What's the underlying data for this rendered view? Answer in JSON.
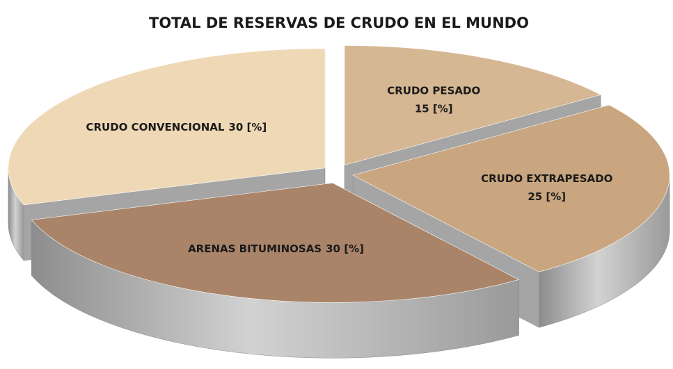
{
  "chart_data": {
    "type": "pie3d",
    "title": "TOTAL DE RESERVAS DE CRUDO EN EL MUNDO",
    "categories": [
      "CRUDO PESADO",
      "CRUDO EXTRAPESADO",
      "ARENAS BITUMINOSAS",
      "CRUDO CONVENCIONAL"
    ],
    "values": [
      15,
      25,
      30,
      30
    ],
    "value_labels": [
      "15 [%]",
      "25 [%]",
      "30 [%]",
      "30 [%]"
    ],
    "colors": [
      "#d6b793",
      "#c9a67f",
      "#a98469",
      "#efd8b6"
    ]
  }
}
